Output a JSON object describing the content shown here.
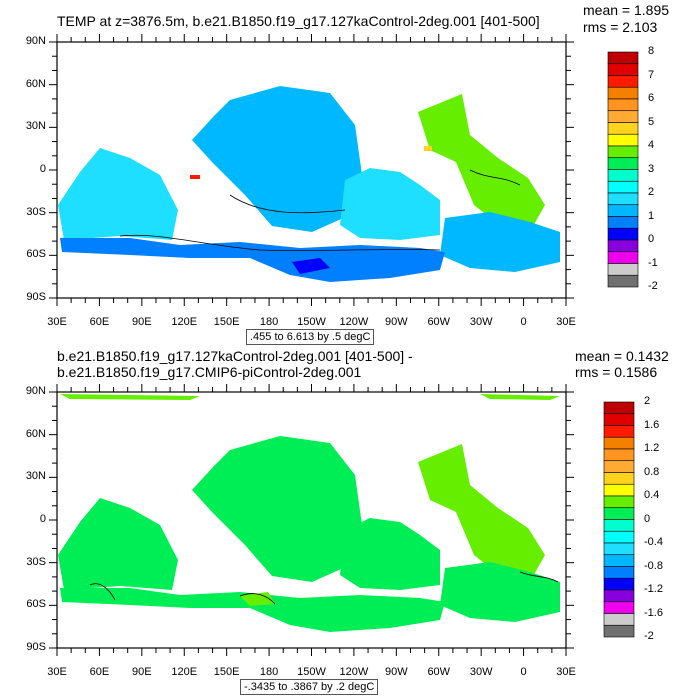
{
  "panels": [
    {
      "title": "TEMP at z=3876.5m, b.e21.B1850.f19_g17.127kaControl-2deg.001 [401-500]",
      "mean": "mean = 1.895",
      "rms": "rms = 2.103",
      "contour_info": ".455 to 6.613 by .5 degC",
      "colorbar_labels": [
        "8",
        "7",
        "6",
        "5",
        "4",
        "3",
        "2",
        "1",
        "0",
        "-1",
        "-2"
      ],
      "colorbar_range": [
        -2,
        8
      ],
      "colorbar_step": 0.5
    },
    {
      "title": "b.e21.B1850.f19_g17.127kaControl-2deg.001 [401-500] - b.e21.B1850.f19_g17.CMIP6-piControl-2deg.001",
      "mean": "mean = 0.1432",
      "rms": "rms = 0.1586",
      "contour_info": "-.3435 to .3867 by .2 degC",
      "colorbar_labels": [
        "2",
        "1.6",
        "1.2",
        "0.8",
        "0.4",
        "0",
        "-0.4",
        "-0.8",
        "-1.2",
        "-1.6",
        "-2"
      ],
      "colorbar_range": [
        -2,
        2
      ],
      "colorbar_step": 0.2
    }
  ],
  "lat_labels": [
    "90N",
    "60N",
    "30N",
    "0",
    "30S",
    "60S",
    "90S"
  ],
  "lon_labels": [
    "30E",
    "60E",
    "90E",
    "120E",
    "150E",
    "180",
    "150W",
    "120W",
    "90W",
    "60W",
    "30W",
    "0",
    "30E"
  ],
  "colormap": [
    "#bf0000",
    "#e00000",
    "#ff1a00",
    "#f58000",
    "#ff9420",
    "#ffaa33",
    "#ffd21e",
    "#ffff00",
    "#66ee00",
    "#00ee55",
    "#00ffcc",
    "#00ffff",
    "#1edfff",
    "#00b8ff",
    "#0080ff",
    "#0000ff",
    "#8800dd",
    "#ee00ee",
    "#cccccc",
    "#707070"
  ]
}
